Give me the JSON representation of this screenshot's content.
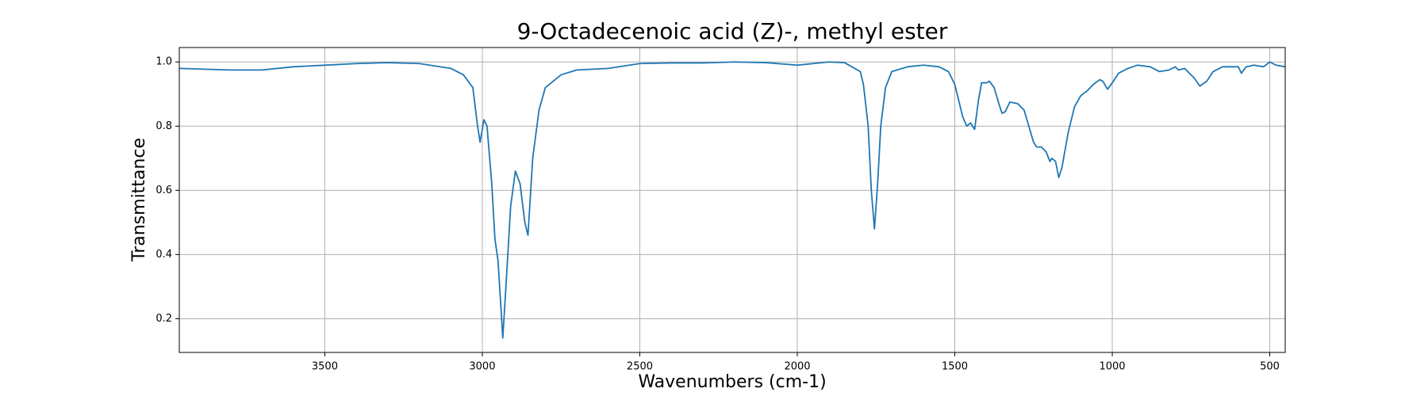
{
  "chart_data": {
    "type": "line",
    "title": "9-Octadecenoic acid (Z)-, methyl ester",
    "xlabel": "Wavenumbers (cm-1)",
    "ylabel": "Transmittance",
    "color": "#1f77b4",
    "grid": true,
    "xlim": [
      3962,
      451
    ],
    "ylim": [
      0.095,
      1.045
    ],
    "xticks": [
      3500,
      3000,
      2500,
      2000,
      1500,
      1000,
      500
    ],
    "yticks": [
      0.2,
      0.4,
      0.6,
      0.8,
      {
        "value": 1,
        "label": "1.0"
      }
    ],
    "x": [
      3962,
      3900,
      3800,
      3700,
      3600,
      3500,
      3400,
      3300,
      3200,
      3100,
      3060,
      3030,
      3015,
      3007,
      2995,
      2985,
      2970,
      2960,
      2950,
      2935,
      2925,
      2910,
      2895,
      2880,
      2865,
      2855,
      2840,
      2820,
      2800,
      2750,
      2700,
      2600,
      2500,
      2400,
      2300,
      2200,
      2100,
      2000,
      1950,
      1900,
      1850,
      1800,
      1790,
      1775,
      1765,
      1755,
      1745,
      1735,
      1720,
      1700,
      1650,
      1600,
      1550,
      1520,
      1500,
      1475,
      1462,
      1450,
      1437,
      1425,
      1415,
      1400,
      1390,
      1375,
      1360,
      1350,
      1340,
      1325,
      1300,
      1280,
      1265,
      1250,
      1240,
      1225,
      1210,
      1198,
      1192,
      1180,
      1170,
      1160,
      1140,
      1120,
      1100,
      1080,
      1060,
      1040,
      1030,
      1015,
      1000,
      980,
      950,
      920,
      880,
      850,
      820,
      800,
      790,
      770,
      740,
      722,
      700,
      680,
      650,
      600,
      590,
      575,
      550,
      520,
      500,
      480,
      451
    ],
    "values": [
      0.98,
      0.978,
      0.975,
      0.975,
      0.985,
      0.99,
      0.995,
      0.998,
      0.995,
      0.98,
      0.96,
      0.92,
      0.8,
      0.75,
      0.82,
      0.8,
      0.62,
      0.45,
      0.38,
      0.14,
      0.3,
      0.55,
      0.66,
      0.62,
      0.5,
      0.46,
      0.7,
      0.85,
      0.92,
      0.96,
      0.975,
      0.98,
      0.995,
      0.997,
      0.997,
      1.0,
      0.998,
      0.99,
      0.995,
      1.0,
      0.998,
      0.97,
      0.93,
      0.8,
      0.6,
      0.48,
      0.62,
      0.8,
      0.92,
      0.97,
      0.985,
      0.99,
      0.985,
      0.97,
      0.93,
      0.83,
      0.8,
      0.81,
      0.79,
      0.88,
      0.935,
      0.935,
      0.94,
      0.92,
      0.87,
      0.84,
      0.845,
      0.875,
      0.87,
      0.85,
      0.8,
      0.75,
      0.735,
      0.735,
      0.72,
      0.69,
      0.7,
      0.69,
      0.64,
      0.67,
      0.78,
      0.86,
      0.895,
      0.91,
      0.93,
      0.945,
      0.94,
      0.915,
      0.935,
      0.965,
      0.98,
      0.99,
      0.985,
      0.97,
      0.975,
      0.985,
      0.975,
      0.98,
      0.95,
      0.925,
      0.94,
      0.97,
      0.985,
      0.985,
      0.965,
      0.985,
      0.99,
      0.985,
      1.0,
      0.99,
      0.985
    ]
  }
}
